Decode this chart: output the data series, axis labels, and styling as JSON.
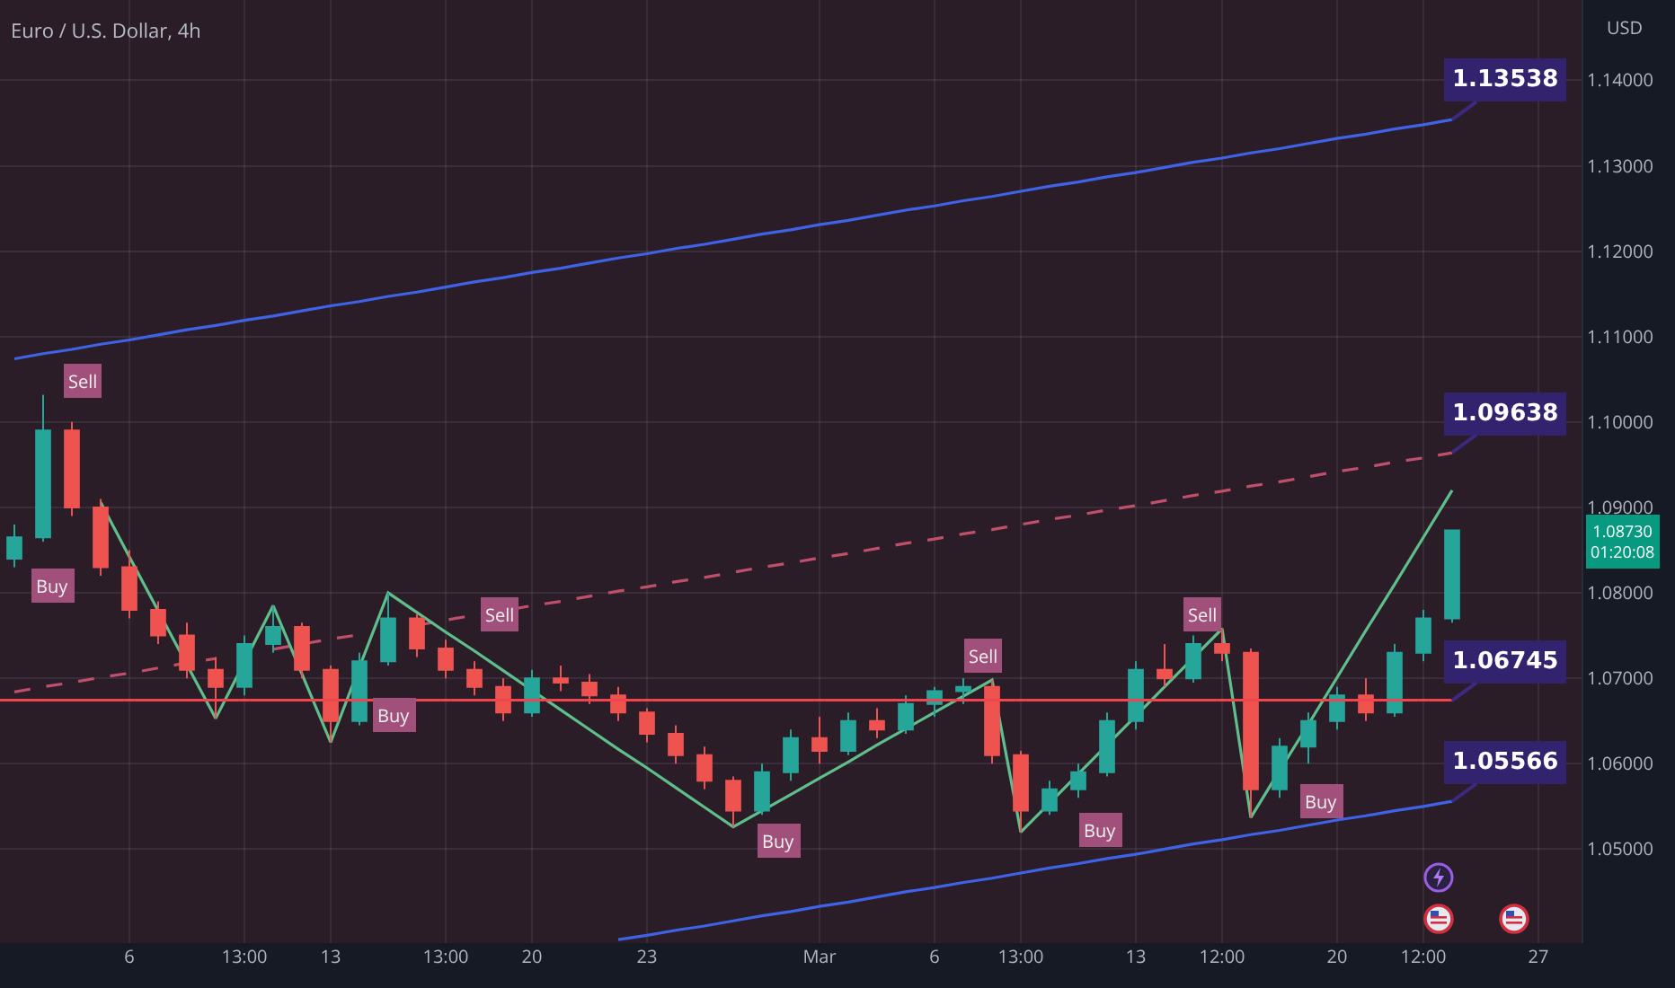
{
  "chart_data": {
    "type": "candlestick",
    "title": "Euro / U.S. Dollar, 4h",
    "ylabel": "USD",
    "categories": [
      null,
      null,
      null,
      null,
      "6",
      null,
      null,
      null,
      "13:00",
      null,
      null,
      "13",
      null,
      null,
      null,
      "13:00",
      null,
      null,
      "20",
      null,
      null,
      null,
      "23",
      null,
      null,
      null,
      null,
      null,
      "Mar",
      null,
      null,
      null,
      "6",
      null,
      null,
      "13:00",
      null,
      null,
      null,
      "13",
      null,
      null,
      "12:00",
      null,
      null,
      null,
      "20",
      null,
      null,
      "12:00",
      null,
      null,
      null,
      "27",
      null
    ],
    "ohlc": [
      [
        1.084,
        1.088,
        1.083,
        1.0865
      ],
      [
        1.0865,
        1.1032,
        1.086,
        1.099
      ],
      [
        1.099,
        1.1,
        1.089,
        1.09
      ],
      [
        1.09,
        1.091,
        1.082,
        1.083
      ],
      [
        1.083,
        1.085,
        1.077,
        1.078
      ],
      [
        1.078,
        1.079,
        1.074,
        1.075
      ],
      [
        1.075,
        1.0765,
        1.07,
        1.071
      ],
      [
        1.071,
        1.0725,
        1.0653,
        1.069
      ],
      [
        1.069,
        1.075,
        1.068,
        1.074
      ],
      [
        1.074,
        1.0785,
        1.073,
        1.076
      ],
      [
        1.076,
        1.0765,
        1.07,
        1.071
      ],
      [
        1.071,
        1.0715,
        1.0625,
        1.065
      ],
      [
        1.065,
        1.073,
        1.0645,
        1.072
      ],
      [
        1.072,
        1.08,
        1.0715,
        1.077
      ],
      [
        1.077,
        1.0775,
        1.0725,
        1.0735
      ],
      [
        1.0735,
        1.0745,
        1.07,
        1.071
      ],
      [
        1.071,
        1.072,
        1.068,
        1.069
      ],
      [
        1.069,
        1.07,
        1.065,
        1.066
      ],
      [
        1.066,
        1.071,
        1.0655,
        1.07
      ],
      [
        1.07,
        1.0715,
        1.0685,
        1.0695
      ],
      [
        1.0695,
        1.0705,
        1.067,
        1.068
      ],
      [
        1.068,
        1.069,
        1.065,
        1.066
      ],
      [
        1.066,
        1.0665,
        1.0625,
        1.0635
      ],
      [
        1.0635,
        1.0645,
        1.06,
        1.061
      ],
      [
        1.061,
        1.062,
        1.057,
        1.058
      ],
      [
        1.058,
        1.0585,
        1.0526,
        1.0545
      ],
      [
        1.0545,
        1.06,
        1.054,
        1.059
      ],
      [
        1.059,
        1.064,
        1.058,
        1.063
      ],
      [
        1.063,
        1.0655,
        1.06,
        1.0615
      ],
      [
        1.0615,
        1.066,
        1.061,
        1.065
      ],
      [
        1.065,
        1.0665,
        1.063,
        1.064
      ],
      [
        1.064,
        1.068,
        1.0635,
        1.067
      ],
      [
        1.067,
        1.069,
        1.0655,
        1.0685
      ],
      [
        1.0685,
        1.07,
        1.067,
        1.069
      ],
      [
        1.069,
        1.0698,
        1.06,
        1.061
      ],
      [
        1.061,
        1.0615,
        1.052,
        1.0545
      ],
      [
        1.0545,
        1.058,
        1.054,
        1.057
      ],
      [
        1.057,
        1.06,
        1.056,
        1.059
      ],
      [
        1.059,
        1.066,
        1.0585,
        1.065
      ],
      [
        1.065,
        1.072,
        1.064,
        1.071
      ],
      [
        1.071,
        1.074,
        1.069,
        1.07
      ],
      [
        1.07,
        1.075,
        1.0695,
        1.074
      ],
      [
        1.074,
        1.0758,
        1.072,
        1.073
      ],
      [
        1.073,
        1.0735,
        1.0537,
        1.057
      ],
      [
        1.057,
        1.063,
        1.056,
        1.062
      ],
      [
        1.062,
        1.066,
        1.06,
        1.065
      ],
      [
        1.065,
        1.069,
        1.064,
        1.068
      ],
      [
        1.068,
        1.07,
        1.065,
        1.066
      ],
      [
        1.066,
        1.074,
        1.0655,
        1.073
      ],
      [
        1.073,
        1.078,
        1.072,
        1.077
      ],
      [
        1.077,
        1.0873,
        1.0765,
        1.0873
      ],
      null,
      null,
      null,
      null
    ],
    "series": [
      {
        "type": "line",
        "color": "#3f63e6",
        "line_style": "solid",
        "values": [
          1.1074,
          1.108,
          1.1085,
          1.1091,
          1.1096,
          1.1102,
          1.1108,
          1.1113,
          1.1119,
          1.1124,
          1.113,
          1.1136,
          1.1141,
          1.1147,
          1.1152,
          1.1158,
          1.1164,
          1.1169,
          1.1175,
          1.118,
          1.1186,
          1.1192,
          1.1197,
          1.1203,
          1.1208,
          1.1214,
          1.122,
          1.1225,
          1.1231,
          1.1236,
          1.1242,
          1.1248,
          1.1253,
          1.1259,
          1.1264,
          1.127,
          1.1276,
          1.1281,
          1.1287,
          1.1292,
          1.1298,
          1.1304,
          1.1309,
          1.1315,
          1.132,
          1.1326,
          1.1332,
          1.1337,
          1.1343,
          1.1348,
          1.1354,
          null,
          null,
          null,
          null
        ]
      },
      {
        "type": "line",
        "color": "#c0506a",
        "line_style": "dashed",
        "values": [
          1.0684,
          1.069,
          1.0695,
          1.0701,
          1.0706,
          1.0712,
          1.0718,
          1.0723,
          null,
          1.0734,
          1.074,
          1.0746,
          1.0751,
          null,
          1.0762,
          1.0768,
          1.0774,
          1.0779,
          1.0785,
          1.079,
          1.0796,
          1.0802,
          1.0807,
          1.0813,
          1.0818,
          1.0824,
          1.083,
          1.0835,
          1.0841,
          1.0846,
          1.0852,
          1.0858,
          1.0863,
          1.0869,
          1.0874,
          1.088,
          1.0886,
          1.0891,
          1.0897,
          1.0902,
          1.0908,
          1.0914,
          1.0919,
          1.0925,
          1.093,
          1.0936,
          1.0942,
          1.0947,
          1.0953,
          1.0958,
          1.0964,
          null,
          null,
          null,
          null
        ]
      },
      {
        "type": "line",
        "color": "#3f63e6",
        "line_style": "solid",
        "values": [
          null,
          null,
          null,
          null,
          null,
          null,
          null,
          null,
          null,
          null,
          null,
          null,
          null,
          null,
          null,
          null,
          null,
          null,
          null,
          null,
          null,
          1.0394,
          1.0399,
          1.0405,
          1.041,
          1.0416,
          1.0422,
          1.0427,
          1.0433,
          1.0438,
          1.0444,
          1.045,
          1.0455,
          1.0461,
          1.0466,
          1.0472,
          1.0478,
          1.0483,
          1.0489,
          1.0494,
          1.05,
          1.0506,
          1.0511,
          1.0517,
          1.0522,
          1.0528,
          1.0534,
          1.0539,
          1.0545,
          1.055,
          1.0556,
          null,
          null,
          null,
          null
        ]
      },
      {
        "type": "line",
        "color": "#5fbf8c",
        "line_style": "solid",
        "values": [
          null,
          null,
          null,
          1.0906,
          1.0842,
          1.0779,
          1.0716,
          1.0653,
          1.0719,
          1.0785,
          1.0705,
          1.0625,
          1.0713,
          1.08,
          1.0777,
          1.0754,
          1.0732,
          1.0709,
          1.0686,
          1.0663,
          1.064,
          1.0617,
          1.0595,
          1.0572,
          1.0549,
          1.0526,
          1.0545,
          1.0564,
          1.0583,
          1.0602,
          1.0622,
          1.0641,
          1.066,
          1.0679,
          1.0698,
          1.052,
          1.0554,
          1.0588,
          1.0622,
          1.0656,
          1.069,
          1.0724,
          1.0758,
          1.0537,
          1.0592,
          1.0646,
          1.0701,
          1.0756,
          1.081,
          1.0865,
          1.092,
          null,
          null,
          null,
          null
        ]
      }
    ],
    "ref_lines": [
      {
        "axis": "y",
        "value": 1.06745,
        "color": "#f0454f"
      }
    ],
    "annotations": [
      "1.13538",
      "1.09638",
      "1.06745",
      "1.05566",
      "Sell",
      "Buy",
      "Buy",
      "Sell",
      "Buy",
      "Sell",
      "Buy",
      "Sell",
      "Buy",
      "1.08730",
      "01:20:08"
    ],
    "ylim": [
      1.039,
      1.1494
    ],
    "yticks": [
      {
        "value": 1.05,
        "label": "1.05000"
      },
      {
        "value": 1.06,
        "label": "1.06000"
      },
      {
        "value": 1.07,
        "label": "1.07000"
      },
      {
        "value": 1.08,
        "label": "1.08000"
      },
      {
        "value": 1.09,
        "label": "1.09000"
      },
      {
        "value": 1.1,
        "label": "1.10000"
      },
      {
        "value": 1.11,
        "label": "1.11000"
      },
      {
        "value": 1.12,
        "label": "1.12000"
      },
      {
        "value": 1.13,
        "label": "1.13000"
      },
      {
        "value": 1.14,
        "label": "1.14000"
      }
    ],
    "grid": true,
    "marker": "none"
  }
}
